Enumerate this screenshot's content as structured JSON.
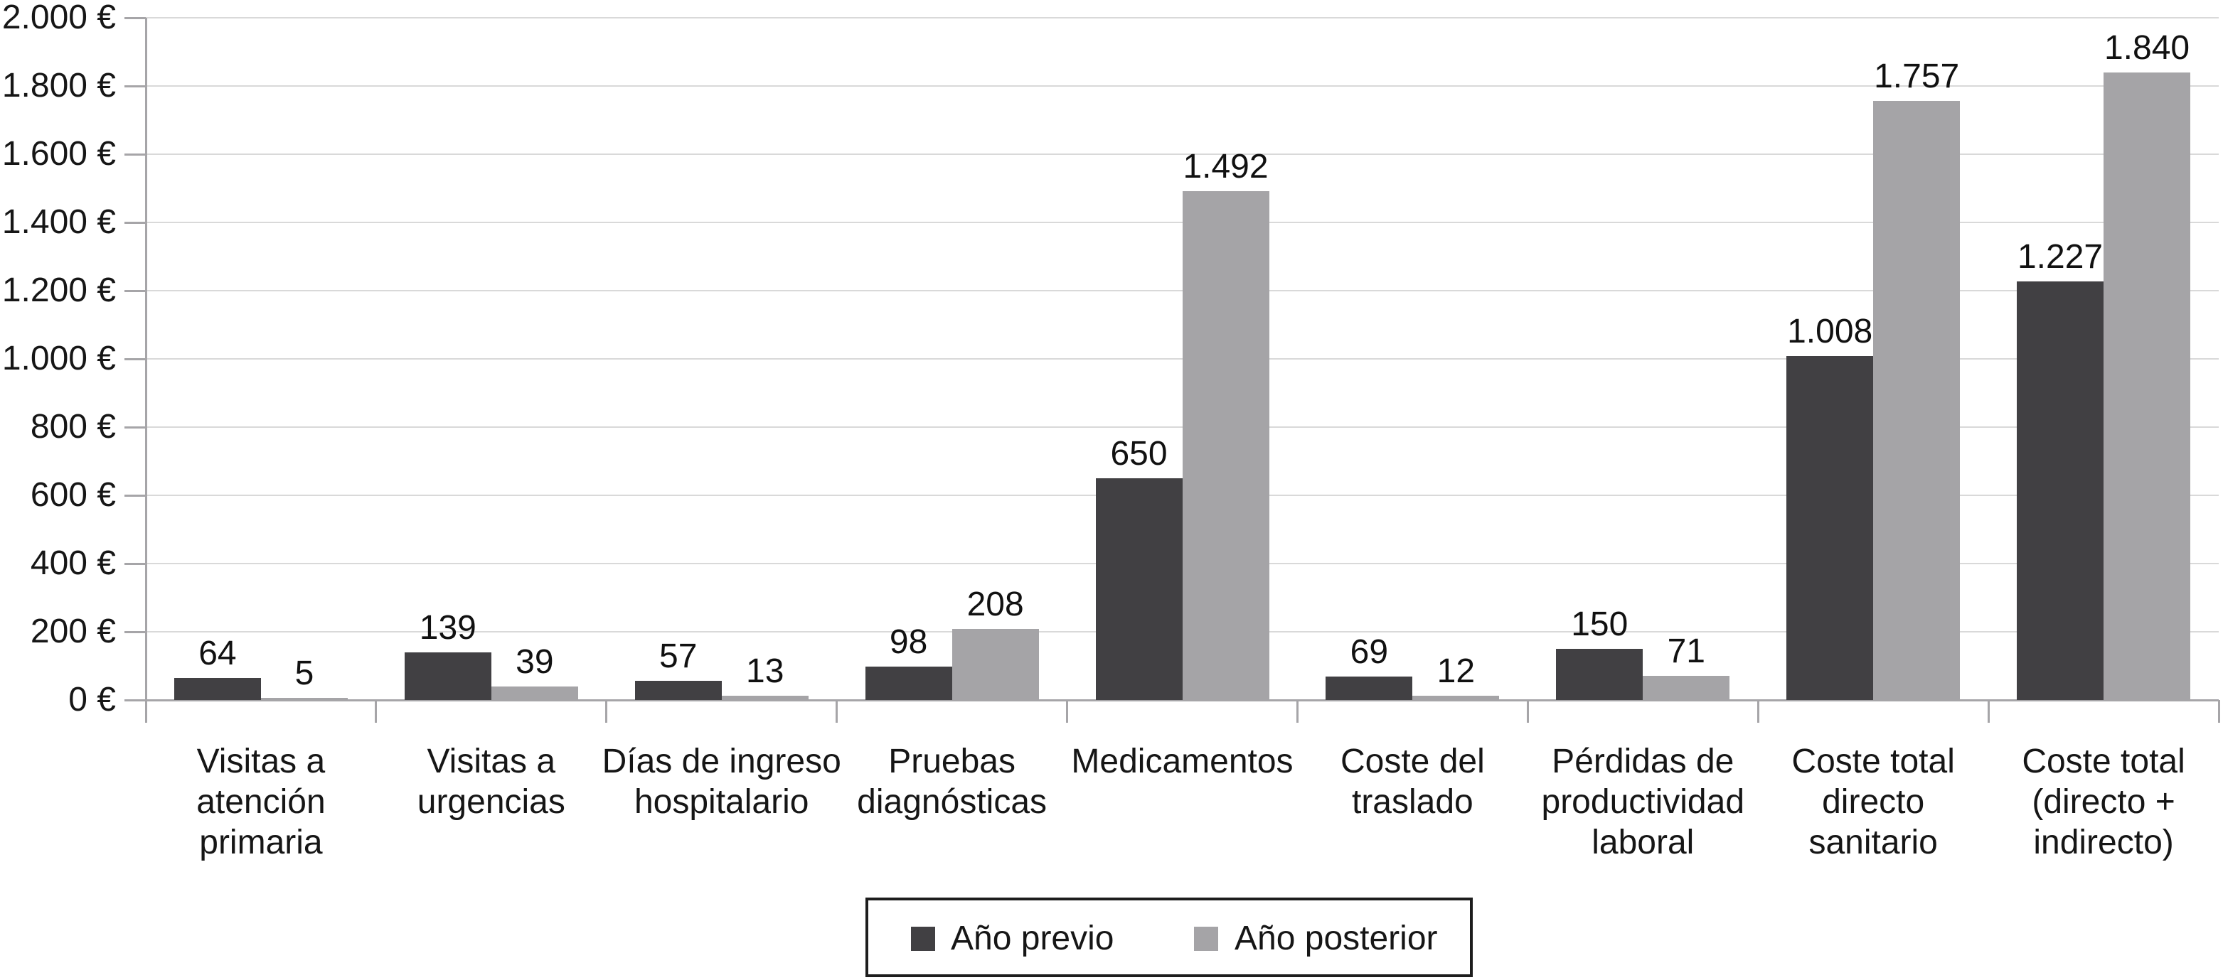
{
  "chart_data": {
    "type": "bar",
    "title": "",
    "xlabel": "",
    "ylabel": "",
    "grid": true,
    "legend_position": "bottom-center",
    "y_axis": {
      "min": 0,
      "max": 2000,
      "step": 200,
      "tick_labels": [
        "0 €",
        "200 €",
        "400 €",
        "600 €",
        "800 €",
        "1.000 €",
        "1.200 €",
        "1.400 €",
        "1.600 €",
        "1.800 €",
        "2.000 €"
      ]
    },
    "categories": [
      {
        "label": "Visitas a atención primaria",
        "lines": [
          "Visitas a",
          "atención",
          "primaria"
        ]
      },
      {
        "label": "Visitas a urgencias",
        "lines": [
          "Visitas a",
          "urgencias"
        ]
      },
      {
        "label": "Días de ingreso hospitalario",
        "lines": [
          "Días de ingreso",
          "hospitalario"
        ]
      },
      {
        "label": "Pruebas diagnósticas",
        "lines": [
          "Pruebas",
          "diagnósticas"
        ]
      },
      {
        "label": "Medicamentos",
        "lines": [
          "Medicamentos"
        ]
      },
      {
        "label": "Coste del traslado",
        "lines": [
          "Coste del",
          "traslado"
        ]
      },
      {
        "label": "Pérdidas de productividad laboral",
        "lines": [
          "Pérdidas de",
          "productividad",
          "laboral"
        ]
      },
      {
        "label": "Coste total directo sanitario",
        "lines": [
          "Coste total",
          "directo",
          "sanitario"
        ]
      },
      {
        "label": "Coste total (directo + indirecto)",
        "lines": [
          "Coste total",
          "(directo +",
          "indirecto)"
        ]
      }
    ],
    "series": [
      {
        "name": "Año previo",
        "color": "#414043",
        "values": [
          64,
          139,
          57,
          98,
          650,
          69,
          150,
          1008,
          1227
        ],
        "value_labels": [
          "64",
          "139",
          "57",
          "98",
          "650",
          "69",
          "150",
          "1.008",
          "1.227"
        ]
      },
      {
        "name": "Año posterior",
        "color": "#a5a4a7",
        "values": [
          5,
          39,
          13,
          208,
          1492,
          12,
          71,
          1757,
          1840
        ],
        "value_labels": [
          "5",
          "39",
          "13",
          "208",
          "1.492",
          "12",
          "71",
          "1.757",
          "1.840"
        ]
      }
    ]
  },
  "colors": {
    "background": "#ffffff",
    "grid": "#d9d9d9",
    "axis": "#a6a5a8",
    "text": "#161616",
    "legend_border": "#1d1d1d",
    "series_dark": "#414043",
    "series_light": "#a5a4a7"
  }
}
